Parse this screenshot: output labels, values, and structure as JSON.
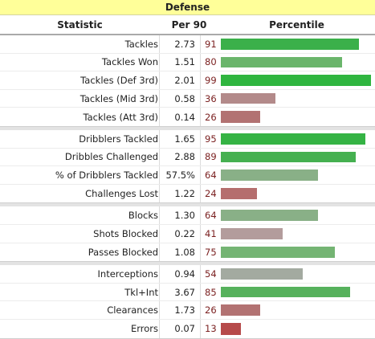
{
  "caption": "Defense",
  "headers": {
    "statistic": "Statistic",
    "per90": "Per 90",
    "percentile": "Percentile"
  },
  "groups": [
    [
      {
        "stat": "Tackles",
        "per90": "2.73",
        "pct": 91,
        "color": "#3bb04a"
      },
      {
        "stat": "Tackles Won",
        "per90": "1.51",
        "pct": 80,
        "color": "#6ab56b"
      },
      {
        "stat": "Tackles (Def 3rd)",
        "per90": "2.01",
        "pct": 99,
        "color": "#2fb53f"
      },
      {
        "stat": "Tackles (Mid 3rd)",
        "per90": "0.58",
        "pct": 36,
        "color": "#b38a8a"
      },
      {
        "stat": "Tackles (Att 3rd)",
        "per90": "0.14",
        "pct": 26,
        "color": "#b27272"
      }
    ],
    [
      {
        "stat": "Dribblers Tackled",
        "per90": "1.65",
        "pct": 95,
        "color": "#35b344"
      },
      {
        "stat": "Dribbles Challenged",
        "per90": "2.88",
        "pct": 89,
        "color": "#45b050"
      },
      {
        "stat": "% of Dribblers Tackled",
        "per90": "57.5%",
        "pct": 64,
        "color": "#89b087"
      },
      {
        "stat": "Challenges Lost",
        "per90": "1.22",
        "pct": 24,
        "color": "#b56e6e"
      }
    ],
    [
      {
        "stat": "Blocks",
        "per90": "1.30",
        "pct": 64,
        "color": "#89b087"
      },
      {
        "stat": "Shots Blocked",
        "per90": "0.22",
        "pct": 41,
        "color": "#b39c9c"
      },
      {
        "stat": "Passes Blocked",
        "per90": "1.08",
        "pct": 75,
        "color": "#74b473"
      }
    ],
    [
      {
        "stat": "Interceptions",
        "per90": "0.94",
        "pct": 54,
        "color": "#a3aaa0"
      },
      {
        "stat": "Tkl+Int",
        "per90": "3.67",
        "pct": 85,
        "color": "#56b15c"
      },
      {
        "stat": "Clearances",
        "per90": "1.73",
        "pct": 26,
        "color": "#b27272"
      },
      {
        "stat": "Errors",
        "per90": "0.07",
        "pct": 13,
        "color": "#b64a4a"
      }
    ]
  ]
}
